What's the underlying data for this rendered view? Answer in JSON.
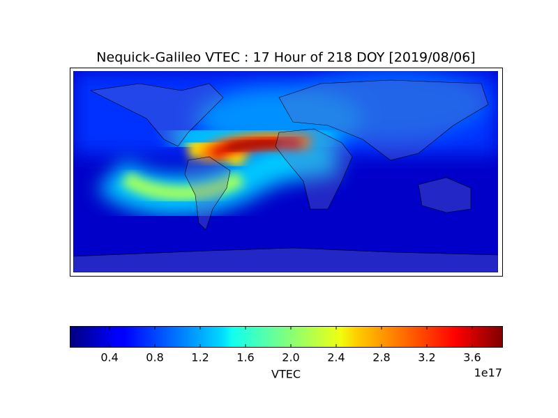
{
  "chart_data": {
    "type": "heatmap-map",
    "title": "Nequick-Galileo VTEC : 17 Hour of 218 DOY [2019/08/06]",
    "colormap": "jet",
    "colorbar_label": "VTEC",
    "colorbar_offset": "1e17",
    "clim": [
      0.055,
      3.865
    ],
    "cticks": [
      0.4,
      0.8,
      1.2,
      1.6,
      {
        "value": 2,
        "label": "2.0"
      },
      2.4,
      2.8,
      3.2,
      3.6
    ]
  }
}
